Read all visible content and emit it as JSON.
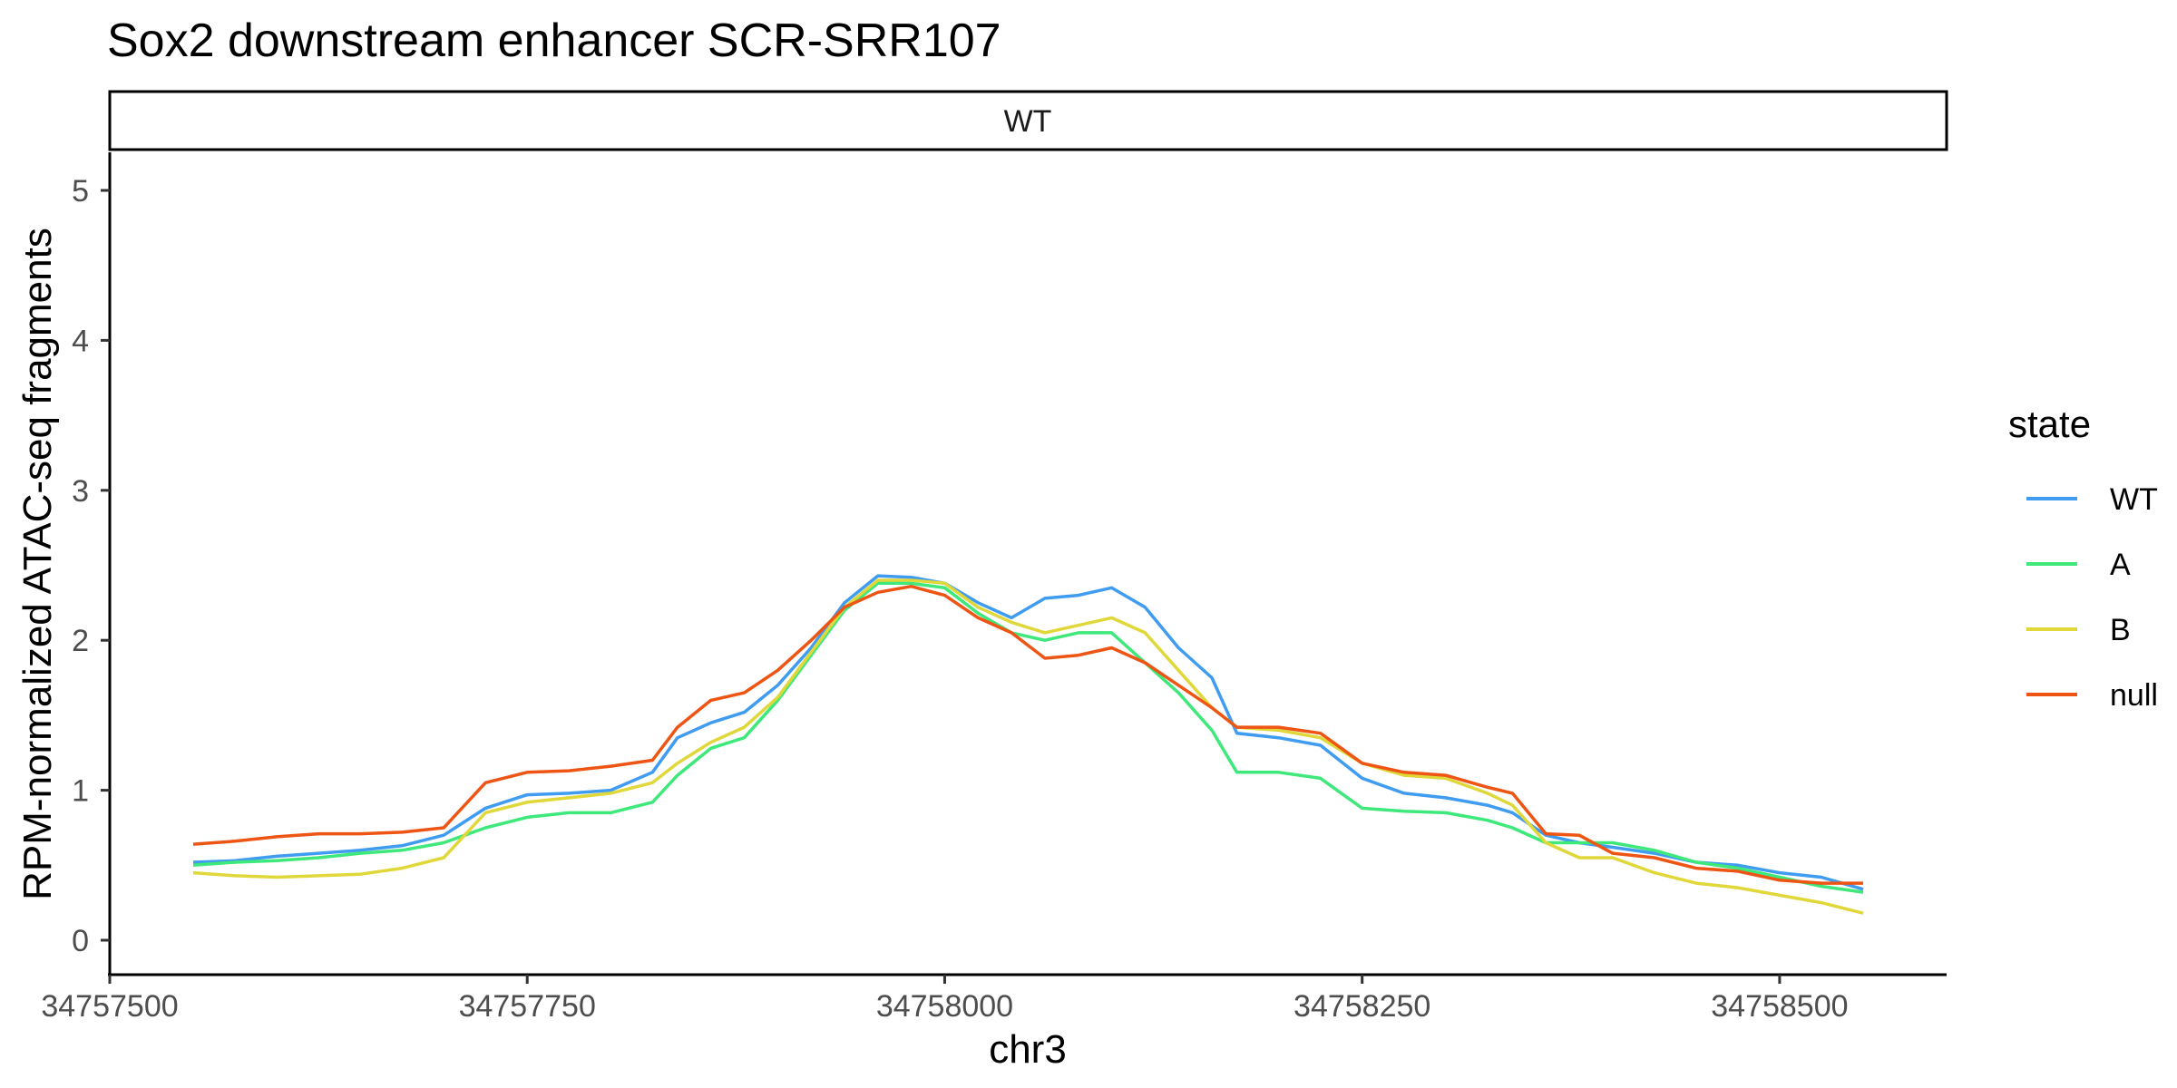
{
  "chart_data": {
    "type": "line",
    "title": "Sox2 downstream enhancer SCR-SRR107",
    "facet": "WT",
    "xlabel": "chr3",
    "ylabel": "RPM-normalized ATAC-seq fragments",
    "xlim": [
      34757500,
      34758600
    ],
    "ylim": [
      0,
      5
    ],
    "x_ticks": [
      34757500,
      34757750,
      34758000,
      34758250,
      34758500
    ],
    "x_tick_labels": [
      "34757500",
      "34757750",
      "34758000",
      "34758250",
      "34758500"
    ],
    "y_ticks": [
      0,
      1,
      2,
      3,
      4,
      5
    ],
    "y_tick_labels": [
      "0",
      "1",
      "2",
      "3",
      "4",
      "5"
    ],
    "grid": false,
    "legend": {
      "title": "state",
      "position": "right"
    },
    "x": [
      34757550,
      34757575,
      34757600,
      34757625,
      34757650,
      34757675,
      34757700,
      34757725,
      34757750,
      34757775,
      34757800,
      34757825,
      34757840,
      34757860,
      34757880,
      34757900,
      34757920,
      34757940,
      34757960,
      34757980,
      34758000,
      34758020,
      34758040,
      34758060,
      34758080,
      34758100,
      34758120,
      34758140,
      34758160,
      34758175,
      34758200,
      34758225,
      34758250,
      34758275,
      34758300,
      34758325,
      34758340,
      34758360,
      34758380,
      34758400,
      34758425,
      34758450,
      34758475,
      34758500,
      34758525,
      34758550
    ],
    "series": [
      {
        "name": "WT",
        "color": "#3f9cf0",
        "values": [
          0.52,
          0.53,
          0.56,
          0.58,
          0.6,
          0.63,
          0.7,
          0.88,
          0.97,
          0.98,
          1.0,
          1.12,
          1.35,
          1.45,
          1.52,
          1.7,
          1.95,
          2.25,
          2.43,
          2.42,
          2.38,
          2.25,
          2.15,
          2.28,
          2.3,
          2.35,
          2.22,
          1.95,
          1.75,
          1.38,
          1.35,
          1.3,
          1.08,
          0.98,
          0.95,
          0.9,
          0.85,
          0.7,
          0.65,
          0.62,
          0.58,
          0.52,
          0.5,
          0.45,
          0.42,
          0.34
        ]
      },
      {
        "name": "A",
        "color": "#3ee87a",
        "values": [
          0.5,
          0.52,
          0.53,
          0.55,
          0.58,
          0.6,
          0.65,
          0.75,
          0.82,
          0.85,
          0.85,
          0.92,
          1.1,
          1.28,
          1.35,
          1.6,
          1.9,
          2.2,
          2.38,
          2.38,
          2.35,
          2.18,
          2.05,
          2.0,
          2.05,
          2.05,
          1.85,
          1.65,
          1.4,
          1.12,
          1.12,
          1.08,
          0.88,
          0.86,
          0.85,
          0.8,
          0.75,
          0.65,
          0.65,
          0.65,
          0.6,
          0.52,
          0.48,
          0.42,
          0.36,
          0.32
        ]
      },
      {
        "name": "B",
        "color": "#e0d83a",
        "values": [
          0.45,
          0.43,
          0.42,
          0.43,
          0.44,
          0.48,
          0.55,
          0.85,
          0.92,
          0.95,
          0.98,
          1.05,
          1.18,
          1.32,
          1.42,
          1.62,
          1.92,
          2.22,
          2.4,
          2.4,
          2.38,
          2.22,
          2.12,
          2.05,
          2.1,
          2.15,
          2.05,
          1.8,
          1.55,
          1.42,
          1.4,
          1.35,
          1.18,
          1.1,
          1.08,
          0.98,
          0.9,
          0.65,
          0.55,
          0.55,
          0.45,
          0.38,
          0.35,
          0.3,
          0.25,
          0.18
        ]
      },
      {
        "name": "null",
        "color": "#ee5514",
        "values": [
          0.64,
          0.66,
          0.69,
          0.71,
          0.71,
          0.72,
          0.75,
          1.05,
          1.12,
          1.13,
          1.16,
          1.2,
          1.42,
          1.6,
          1.65,
          1.8,
          2.0,
          2.22,
          2.32,
          2.36,
          2.3,
          2.15,
          2.05,
          1.88,
          1.9,
          1.95,
          1.85,
          1.7,
          1.55,
          1.42,
          1.42,
          1.38,
          1.18,
          1.12,
          1.1,
          1.02,
          0.98,
          0.71,
          0.7,
          0.58,
          0.55,
          0.48,
          0.46,
          0.4,
          0.38,
          0.38
        ]
      }
    ]
  }
}
